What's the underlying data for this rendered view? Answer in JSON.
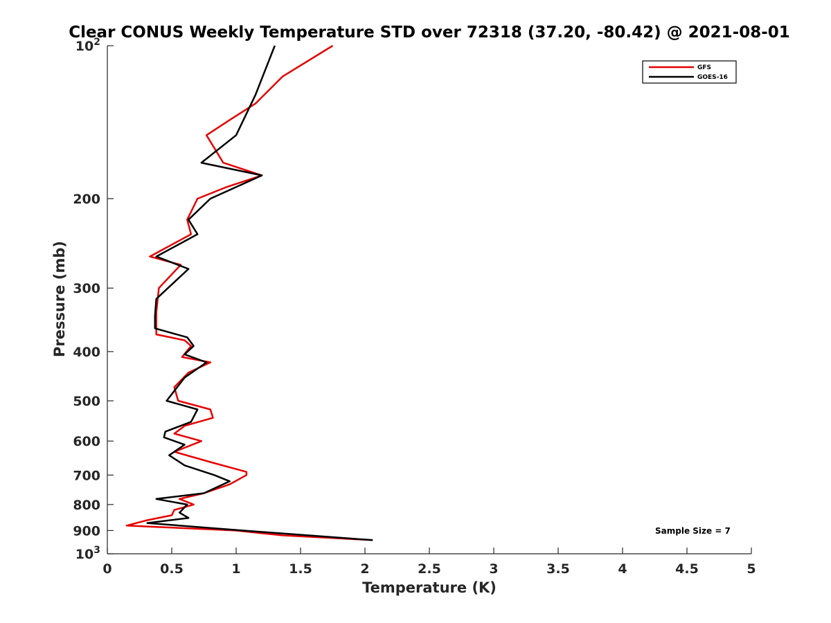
{
  "chart_data": {
    "type": "line",
    "title": "Clear CONUS Weekly Temperature STD over 72318 (37.20, -80.42) @ 2021-08-01",
    "xlabel": "Temperature (K)",
    "ylabel": "Pressure (mb)",
    "xlim": [
      0,
      5
    ],
    "ylim": [
      100,
      1000
    ],
    "y_scale": "log",
    "y_reversed": true,
    "xticks": [
      "0",
      "0.5",
      "1",
      "1.5",
      "2",
      "2.5",
      "3",
      "3.5",
      "4",
      "4.5",
      "5"
    ],
    "yticks": [
      {
        "value": 100,
        "base": "10",
        "exp": "2"
      },
      {
        "value": 200,
        "label": "200"
      },
      {
        "value": 300,
        "label": "300"
      },
      {
        "value": 400,
        "label": "400"
      },
      {
        "value": 500,
        "label": "500"
      },
      {
        "value": 600,
        "label": "600"
      },
      {
        "value": 700,
        "label": "700"
      },
      {
        "value": 800,
        "label": "800"
      },
      {
        "value": 900,
        "label": "900"
      },
      {
        "value": 1000,
        "base": "10",
        "exp": "3"
      }
    ],
    "legend_position": "top-right",
    "annotation": "Sample Size = 7",
    "series": [
      {
        "name": "GFS",
        "color": "#e60000",
        "points": [
          [
            1.75,
            100
          ],
          [
            1.36,
            115
          ],
          [
            1.15,
            130
          ],
          [
            0.95,
            140
          ],
          [
            0.77,
            150
          ],
          [
            0.9,
            170
          ],
          [
            1.2,
            180
          ],
          [
            0.92,
            190
          ],
          [
            0.7,
            200
          ],
          [
            0.62,
            220
          ],
          [
            0.65,
            235
          ],
          [
            0.33,
            260
          ],
          [
            0.57,
            270
          ],
          [
            0.4,
            300
          ],
          [
            0.38,
            335
          ],
          [
            0.38,
            370
          ],
          [
            0.6,
            380
          ],
          [
            0.65,
            390
          ],
          [
            0.58,
            410
          ],
          [
            0.8,
            420
          ],
          [
            0.63,
            440
          ],
          [
            0.52,
            470
          ],
          [
            0.55,
            500
          ],
          [
            0.8,
            520
          ],
          [
            0.82,
            540
          ],
          [
            0.6,
            560
          ],
          [
            0.52,
            580
          ],
          [
            0.73,
            600
          ],
          [
            0.52,
            630
          ],
          [
            0.8,
            660
          ],
          [
            1.08,
            690
          ],
          [
            1.08,
            700
          ],
          [
            0.95,
            730
          ],
          [
            0.75,
            760
          ],
          [
            0.56,
            780
          ],
          [
            0.67,
            800
          ],
          [
            0.52,
            820
          ],
          [
            0.5,
            840
          ],
          [
            0.3,
            860
          ],
          [
            0.15,
            880
          ],
          [
            1.0,
            900
          ],
          [
            1.36,
            920
          ],
          [
            2.06,
            940
          ]
        ]
      },
      {
        "name": "GOES-16",
        "color": "#000000",
        "points": [
          [
            1.3,
            100
          ],
          [
            1.15,
            125
          ],
          [
            1.0,
            150
          ],
          [
            0.73,
            170
          ],
          [
            1.2,
            180
          ],
          [
            0.8,
            200
          ],
          [
            0.63,
            220
          ],
          [
            0.7,
            235
          ],
          [
            0.38,
            260
          ],
          [
            0.63,
            275
          ],
          [
            0.38,
            315
          ],
          [
            0.37,
            340
          ],
          [
            0.37,
            360
          ],
          [
            0.62,
            375
          ],
          [
            0.67,
            390
          ],
          [
            0.6,
            405
          ],
          [
            0.77,
            420
          ],
          [
            0.6,
            450
          ],
          [
            0.46,
            500
          ],
          [
            0.7,
            520
          ],
          [
            0.65,
            550
          ],
          [
            0.45,
            575
          ],
          [
            0.44,
            590
          ],
          [
            0.6,
            610
          ],
          [
            0.48,
            640
          ],
          [
            0.6,
            670
          ],
          [
            0.83,
            700
          ],
          [
            0.95,
            720
          ],
          [
            0.75,
            760
          ],
          [
            0.38,
            780
          ],
          [
            0.62,
            800
          ],
          [
            0.56,
            830
          ],
          [
            0.63,
            850
          ],
          [
            0.31,
            870
          ],
          [
            1.05,
            900
          ],
          [
            2.06,
            940
          ]
        ]
      }
    ]
  }
}
